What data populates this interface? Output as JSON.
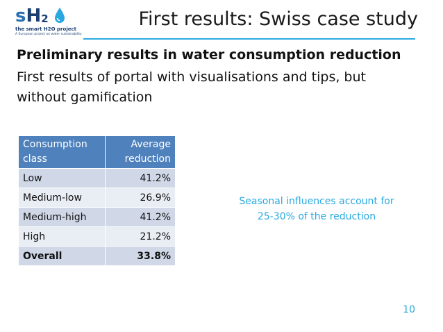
{
  "logo": {
    "mark_s": "s",
    "mark_h": "H",
    "mark_2": "2",
    "tagline": "the smart H2O project",
    "subtitle": "A European project on water sustainability",
    "drop_color": "#29a9e1"
  },
  "slide": {
    "title": "First results: Swiss case study",
    "heading": "Preliminary results in water consumption reduction",
    "subtitle_lines": [
      "First results of portal with visualisations and tips, but",
      "without gamification"
    ],
    "note_lines": [
      "Seasonal influences account for",
      "25-30% of the reduction"
    ],
    "page_number": "10"
  },
  "table": {
    "header": {
      "col1": [
        "Consumption",
        "class"
      ],
      "col2": [
        "Average",
        "reduction"
      ]
    },
    "rows": [
      {
        "class": "Low",
        "reduction": "41.2%"
      },
      {
        "class": "Medium-low",
        "reduction": "26.9%"
      },
      {
        "class": "Medium-high",
        "reduction": "41.2%"
      },
      {
        "class": "High",
        "reduction": "21.2%"
      },
      {
        "class": "Overall",
        "reduction": "33.8%"
      }
    ]
  },
  "colors": {
    "accent": "#29a9e1",
    "table_header": "#4f81bd",
    "row_odd": "#d0d8e8",
    "row_even": "#e9edf4"
  }
}
